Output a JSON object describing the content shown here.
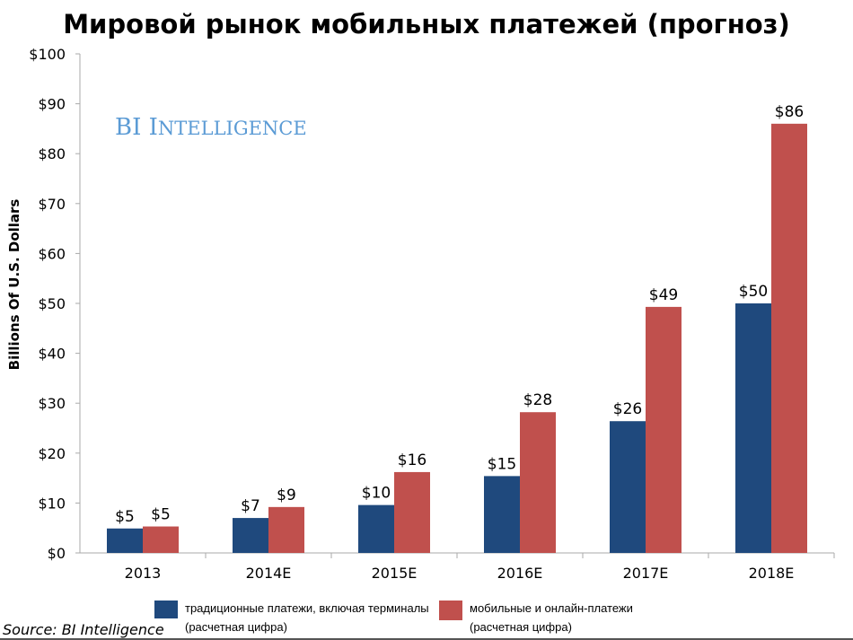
{
  "chart_data": {
    "type": "bar",
    "title": "Мировой рынок мобильных платежей (прогноз)",
    "ylabel": "Billions Of U.S. Dollars",
    "xlabel": "",
    "ylim": [
      0,
      100
    ],
    "yticks": [
      0,
      10,
      20,
      30,
      40,
      50,
      60,
      70,
      80,
      90,
      100
    ],
    "ytick_labels": [
      "$0",
      "$10",
      "$20",
      "$30",
      "$40",
      "$50",
      "$60",
      "$70",
      "$80",
      "$90",
      "$100"
    ],
    "categories": [
      "2013",
      "2014E",
      "2015E",
      "2016E",
      "2017E",
      "2018E"
    ],
    "grid": false,
    "legend_position": "bottom",
    "series": [
      {
        "name": "традиционные платежи, включая терминалы (расчетная цифра)",
        "color": "#1F497D",
        "values": [
          4.9,
          7.0,
          9.6,
          15.4,
          26.4,
          50.0
        ],
        "labels": [
          "$5",
          "$7",
          "$10",
          "$15",
          "$26",
          "$50"
        ]
      },
      {
        "name": "мобильные и онлайн-платежи (расчетная цифра)",
        "color": "#C0504D",
        "values": [
          5.3,
          9.2,
          16.2,
          28.2,
          49.3,
          86.0
        ],
        "labels": [
          "$5",
          "$9",
          "$16",
          "$28",
          "$49",
          "$86"
        ]
      }
    ]
  },
  "legend": [
    {
      "line1": "традиционные платежи, включая терминалы",
      "line2": "(расчетная цифра)"
    },
    {
      "line1": "мобильные и онлайн-платежи",
      "line2": "(расчетная цифра)"
    }
  ],
  "watermark": "BI Intelligence",
  "source": "Source: BI Intelligence"
}
